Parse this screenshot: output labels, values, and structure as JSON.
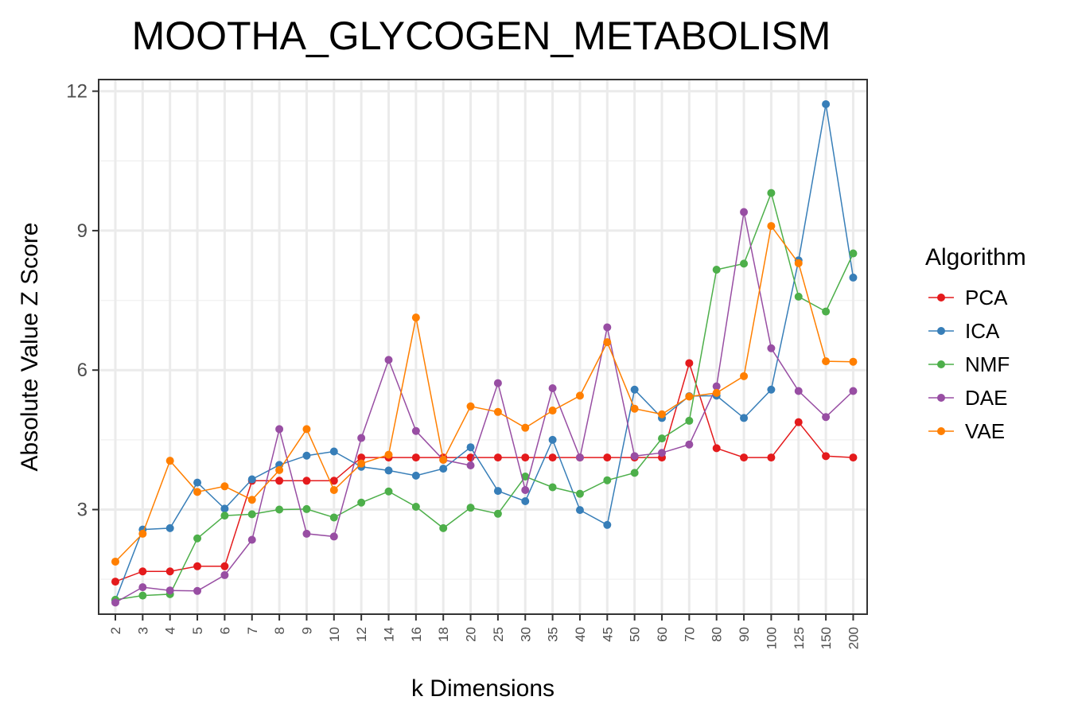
{
  "chart_data": {
    "type": "line",
    "title": "MOOTHA_GLYCOGEN_METABOLISM",
    "xlabel": "k Dimensions",
    "ylabel": "Absolute Value Z Score",
    "ylim": [
      0.75,
      12.25
    ],
    "yticks": [
      3,
      6,
      9,
      12
    ],
    "ytick_labels": [
      "3",
      "6",
      "9",
      "12"
    ],
    "grid": true,
    "legend_title": "Algorithm",
    "legend_position": "right",
    "categories": [
      "2",
      "3",
      "4",
      "5",
      "6",
      "7",
      "8",
      "9",
      "10",
      "12",
      "14",
      "16",
      "18",
      "20",
      "25",
      "30",
      "35",
      "40",
      "45",
      "50",
      "60",
      "70",
      "80",
      "90",
      "100",
      "125",
      "150",
      "200"
    ],
    "series": [
      {
        "name": "PCA",
        "color": "#e41a1c",
        "values": [
          1.45,
          1.67,
          1.67,
          1.78,
          1.78,
          3.62,
          3.62,
          3.62,
          3.62,
          4.12,
          4.12,
          4.12,
          4.12,
          4.12,
          4.12,
          4.12,
          4.12,
          4.12,
          4.12,
          4.12,
          4.12,
          6.15,
          4.32,
          4.12,
          4.12,
          4.88,
          4.15,
          4.12
        ]
      },
      {
        "name": "ICA",
        "color": "#377eb8",
        "values": [
          1.05,
          2.57,
          2.6,
          3.58,
          3.02,
          3.65,
          3.96,
          4.16,
          4.25,
          3.92,
          3.84,
          3.73,
          3.88,
          4.34,
          3.4,
          3.18,
          4.5,
          2.99,
          2.67,
          5.58,
          4.97,
          5.44,
          5.45,
          4.97,
          5.58,
          8.36,
          11.72,
          7.99
        ]
      },
      {
        "name": "NMF",
        "color": "#4daf4a",
        "values": [
          1.06,
          1.15,
          1.18,
          2.38,
          2.87,
          2.9,
          3.0,
          3.01,
          2.83,
          3.15,
          3.39,
          3.06,
          2.6,
          3.04,
          2.91,
          3.71,
          3.48,
          3.34,
          3.63,
          3.79,
          4.53,
          4.91,
          8.16,
          8.29,
          9.81,
          7.58,
          7.26,
          8.51
        ]
      },
      {
        "name": "DAE",
        "color": "#984ea3",
        "values": [
          1.0,
          1.33,
          1.26,
          1.25,
          1.59,
          2.35,
          4.73,
          2.48,
          2.42,
          4.54,
          6.22,
          4.69,
          4.07,
          3.95,
          5.72,
          3.42,
          5.61,
          4.12,
          6.92,
          4.15,
          4.22,
          4.4,
          5.65,
          9.4,
          6.47,
          5.55,
          4.99,
          5.55
        ]
      },
      {
        "name": "VAE",
        "color": "#ff7f00",
        "values": [
          1.88,
          2.48,
          4.05,
          3.38,
          3.5,
          3.21,
          3.85,
          4.73,
          3.42,
          3.99,
          4.18,
          7.13,
          4.07,
          5.22,
          5.1,
          4.76,
          5.13,
          5.45,
          6.6,
          5.17,
          5.05,
          5.43,
          5.51,
          5.87,
          9.1,
          8.3,
          6.19,
          6.18
        ]
      }
    ]
  }
}
